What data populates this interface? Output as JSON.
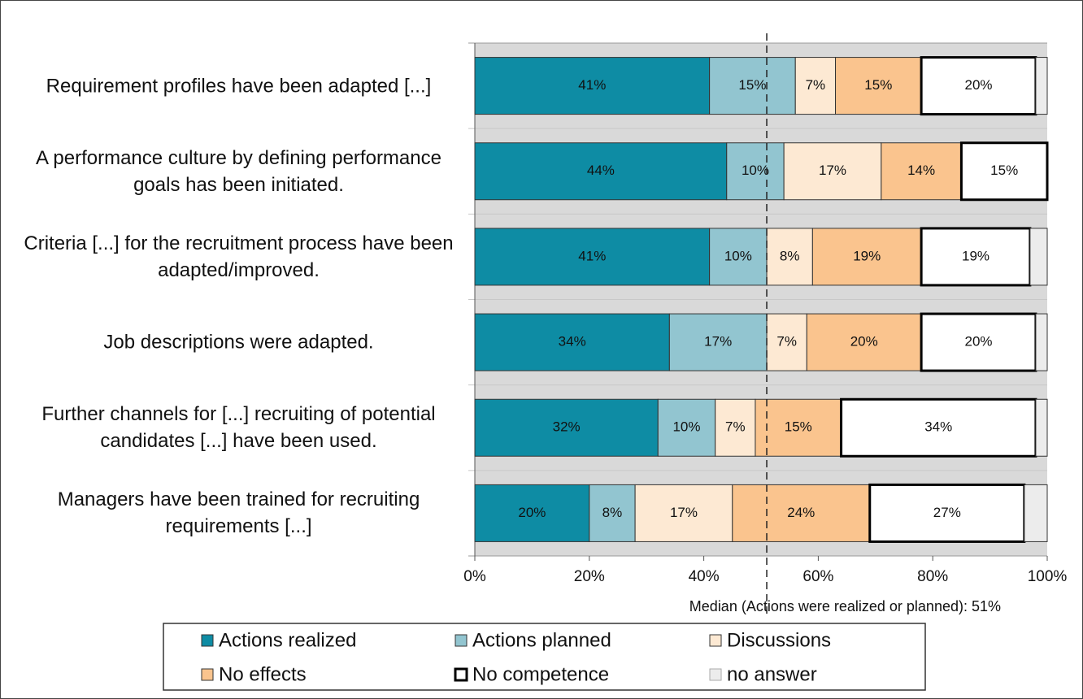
{
  "chart_data": {
    "type": "stacked-barh",
    "categories": [
      "Requirement profiles have been adapted [...]",
      "A performance culture by defining performance goals has been initiated.",
      "Criteria [...] for the recruitment process have been adapted/improved.",
      "Job descriptions were adapted.",
      "Further channels for [...] recruiting of potential candidates [...] have been used.",
      "Managers have been trained for recruiting requirements [...]"
    ],
    "series": [
      {
        "name": "Actions realized",
        "color": "#0e8ca4",
        "values": [
          41,
          44,
          41,
          34,
          32,
          20
        ],
        "value_labels": [
          "41%",
          "44%",
          "41%",
          "34%",
          "32%",
          "20%"
        ]
      },
      {
        "name": "Actions planned",
        "color": "#92c5d0",
        "values": [
          15,
          10,
          10,
          17,
          10,
          8
        ],
        "value_labels": [
          "15%",
          "10%",
          "10%",
          "17%",
          "10%",
          "8%"
        ]
      },
      {
        "name": "Discussions",
        "color": "#fde9d3",
        "values": [
          7,
          17,
          8,
          7,
          7,
          17
        ],
        "value_labels": [
          "7%",
          "17%",
          "8%",
          "7%",
          "7%",
          "17%"
        ]
      },
      {
        "name": "No effects",
        "color": "#fac48e",
        "values": [
          15,
          14,
          19,
          20,
          15,
          24
        ],
        "value_labels": [
          "15%",
          "14%",
          "19%",
          "20%",
          "15%",
          "24%"
        ]
      },
      {
        "name": "No competence",
        "color": "#ffffff",
        "values": [
          20,
          15,
          19,
          20,
          34,
          27
        ],
        "value_labels": [
          "20%",
          "15%",
          "19%",
          "20%",
          "34%",
          "27%"
        ]
      },
      {
        "name": "no answer",
        "color": "#ececec",
        "values": [
          2,
          0,
          3,
          2,
          2,
          4
        ]
      }
    ],
    "xlim": [
      0,
      100
    ],
    "xticks": [
      {
        "value": 0,
        "label": "0%"
      },
      {
        "value": 20,
        "label": "20%"
      },
      {
        "value": 40,
        "label": "40%"
      },
      {
        "value": 60,
        "label": "60%"
      },
      {
        "value": 80,
        "label": "80%"
      },
      {
        "value": 100,
        "label": "100%"
      }
    ],
    "median": 51,
    "annotation": "Median (Actions were realized or planned): 51%"
  }
}
